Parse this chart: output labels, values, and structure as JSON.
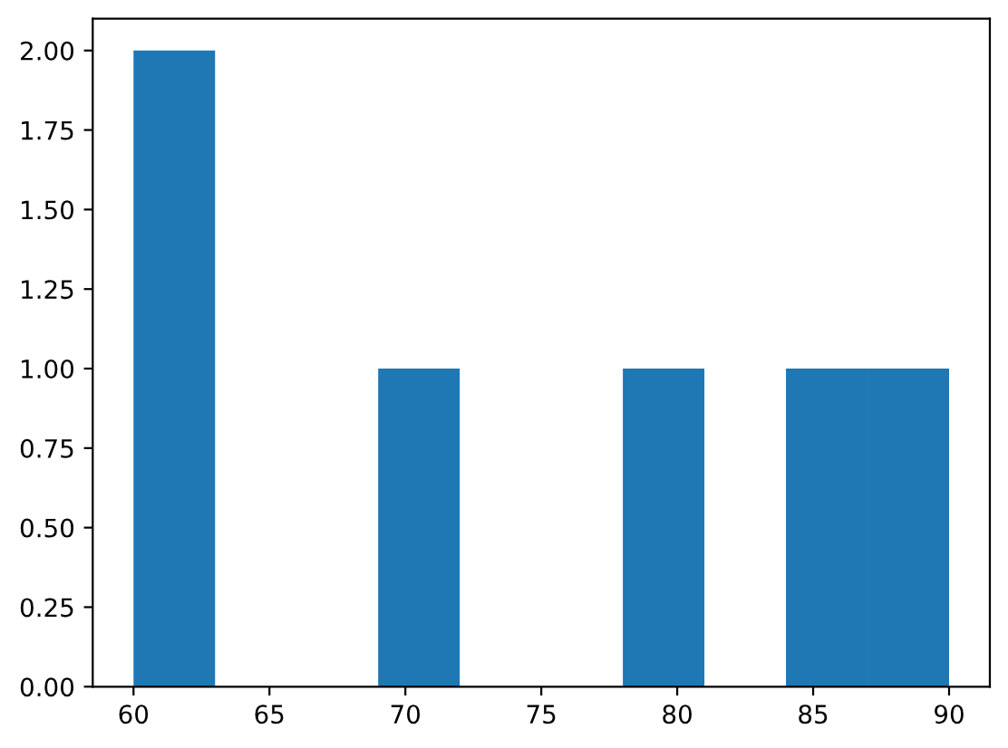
{
  "chart_data": {
    "type": "histogram",
    "bins": [
      60,
      63,
      66,
      69,
      72,
      75,
      78,
      81,
      84,
      87,
      90
    ],
    "values": [
      2,
      0,
      0,
      1,
      0,
      0,
      1,
      0,
      1,
      1
    ],
    "color": "#1f77b4",
    "xlim": [
      58.5,
      91.5
    ],
    "xticks": [
      60,
      65,
      70,
      75,
      80,
      85,
      90
    ],
    "ylim": [
      0,
      2.1
    ],
    "yticks": [
      {
        "value": 0,
        "label": "0.00"
      },
      {
        "value": 0.25,
        "label": "0.25"
      },
      {
        "value": 0.5,
        "label": "0.50"
      },
      {
        "value": 0.75,
        "label": "0.75"
      },
      {
        "value": 1,
        "label": "1.00"
      },
      {
        "value": 1.25,
        "label": "1.25"
      },
      {
        "value": 1.5,
        "label": "1.50"
      },
      {
        "value": 1.75,
        "label": "1.75"
      },
      {
        "value": 2,
        "label": "2.00"
      }
    ]
  }
}
